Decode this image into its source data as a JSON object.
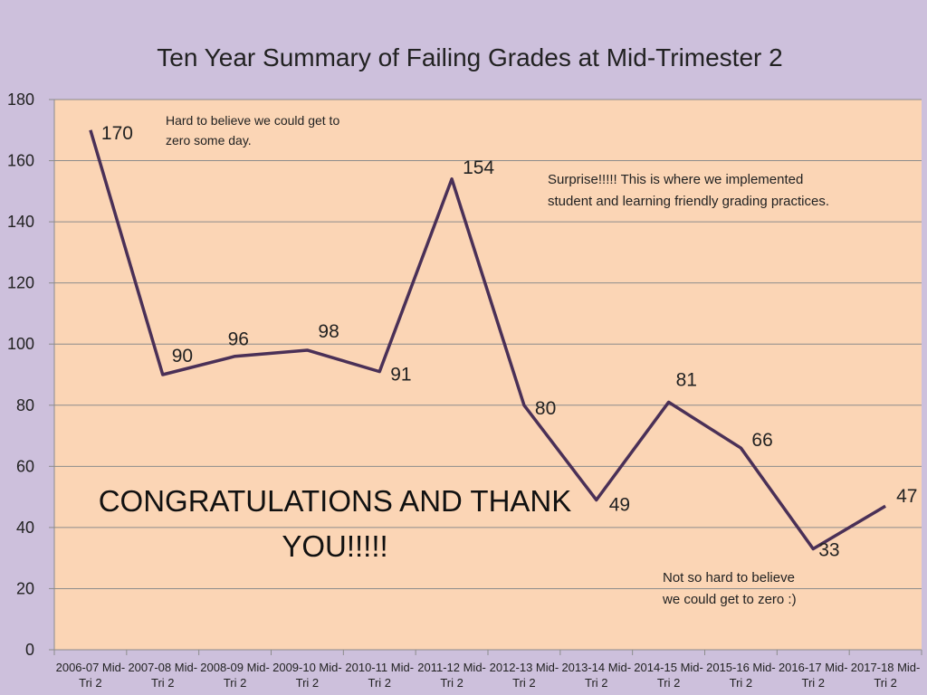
{
  "chart_data": {
    "type": "line",
    "title": "Ten Year Summary of Failing Grades at Mid-Trimester 2",
    "xlabel": "",
    "ylabel": "",
    "ylim": [
      0,
      180
    ],
    "yticks": [
      0,
      20,
      40,
      60,
      80,
      100,
      120,
      140,
      160,
      180
    ],
    "grid": true,
    "legend": "none",
    "categories": [
      "2006-07 Mid-Tri 2",
      "2007-08 Mid-Tri 2",
      "2008-09 Mid-Tri 2",
      "2009-10 Mid-Tri 2",
      "2010-11 Mid-Tri 2",
      "2011-12 Mid-Tri 2",
      "2012-13 Mid-Tri 2",
      "2013-14 Mid-Tri 2",
      "2014-15 Mid-Tri 2",
      "2015-16 Mid-Tri 2",
      "2016-17 Mid-Tri 2",
      "2017-18 Mid-Tri 2"
    ],
    "category_lines": [
      [
        "2006-07 Mid-",
        "Tri 2"
      ],
      [
        "2007-08 Mid-",
        "Tri 2"
      ],
      [
        "2008-09 Mid-",
        "Tri 2"
      ],
      [
        "2009-10 Mid-",
        "Tri 2"
      ],
      [
        "2010-11 Mid-",
        "Tri 2"
      ],
      [
        "2011-12 Mid-",
        "Tri 2"
      ],
      [
        "2012-13 Mid-",
        "Tri 2"
      ],
      [
        "2013-14 Mid-",
        "Tri 2"
      ],
      [
        "2014-15 Mid-",
        "Tri 2"
      ],
      [
        "2015-16 Mid-",
        "Tri 2"
      ],
      [
        "2016-17 Mid-",
        "Tri 2"
      ],
      [
        "2017-18 Mid-",
        "Tri 2"
      ]
    ],
    "values": [
      170,
      90,
      96,
      98,
      91,
      154,
      80,
      49,
      81,
      66,
      33,
      47
    ],
    "colors": {
      "line": "#4a3057",
      "plot_background": "#fbd5b5",
      "page_background": "#cdc0dc",
      "grid": "#8c8c8c"
    },
    "annotations": [
      {
        "id": "hard",
        "lines": [
          "Hard to believe we could get to",
          "zero some day."
        ]
      },
      {
        "id": "surprise",
        "lines": [
          "Surprise!!!!!  This is where we implemented",
          "student and learning friendly grading practices."
        ]
      },
      {
        "id": "congrats",
        "lines": [
          "CONGRATULATIONS AND THANK",
          "YOU!!!!!"
        ]
      },
      {
        "id": "notsohard",
        "lines": [
          "Not so hard to believe",
          "we could get to zero :)"
        ]
      }
    ]
  }
}
